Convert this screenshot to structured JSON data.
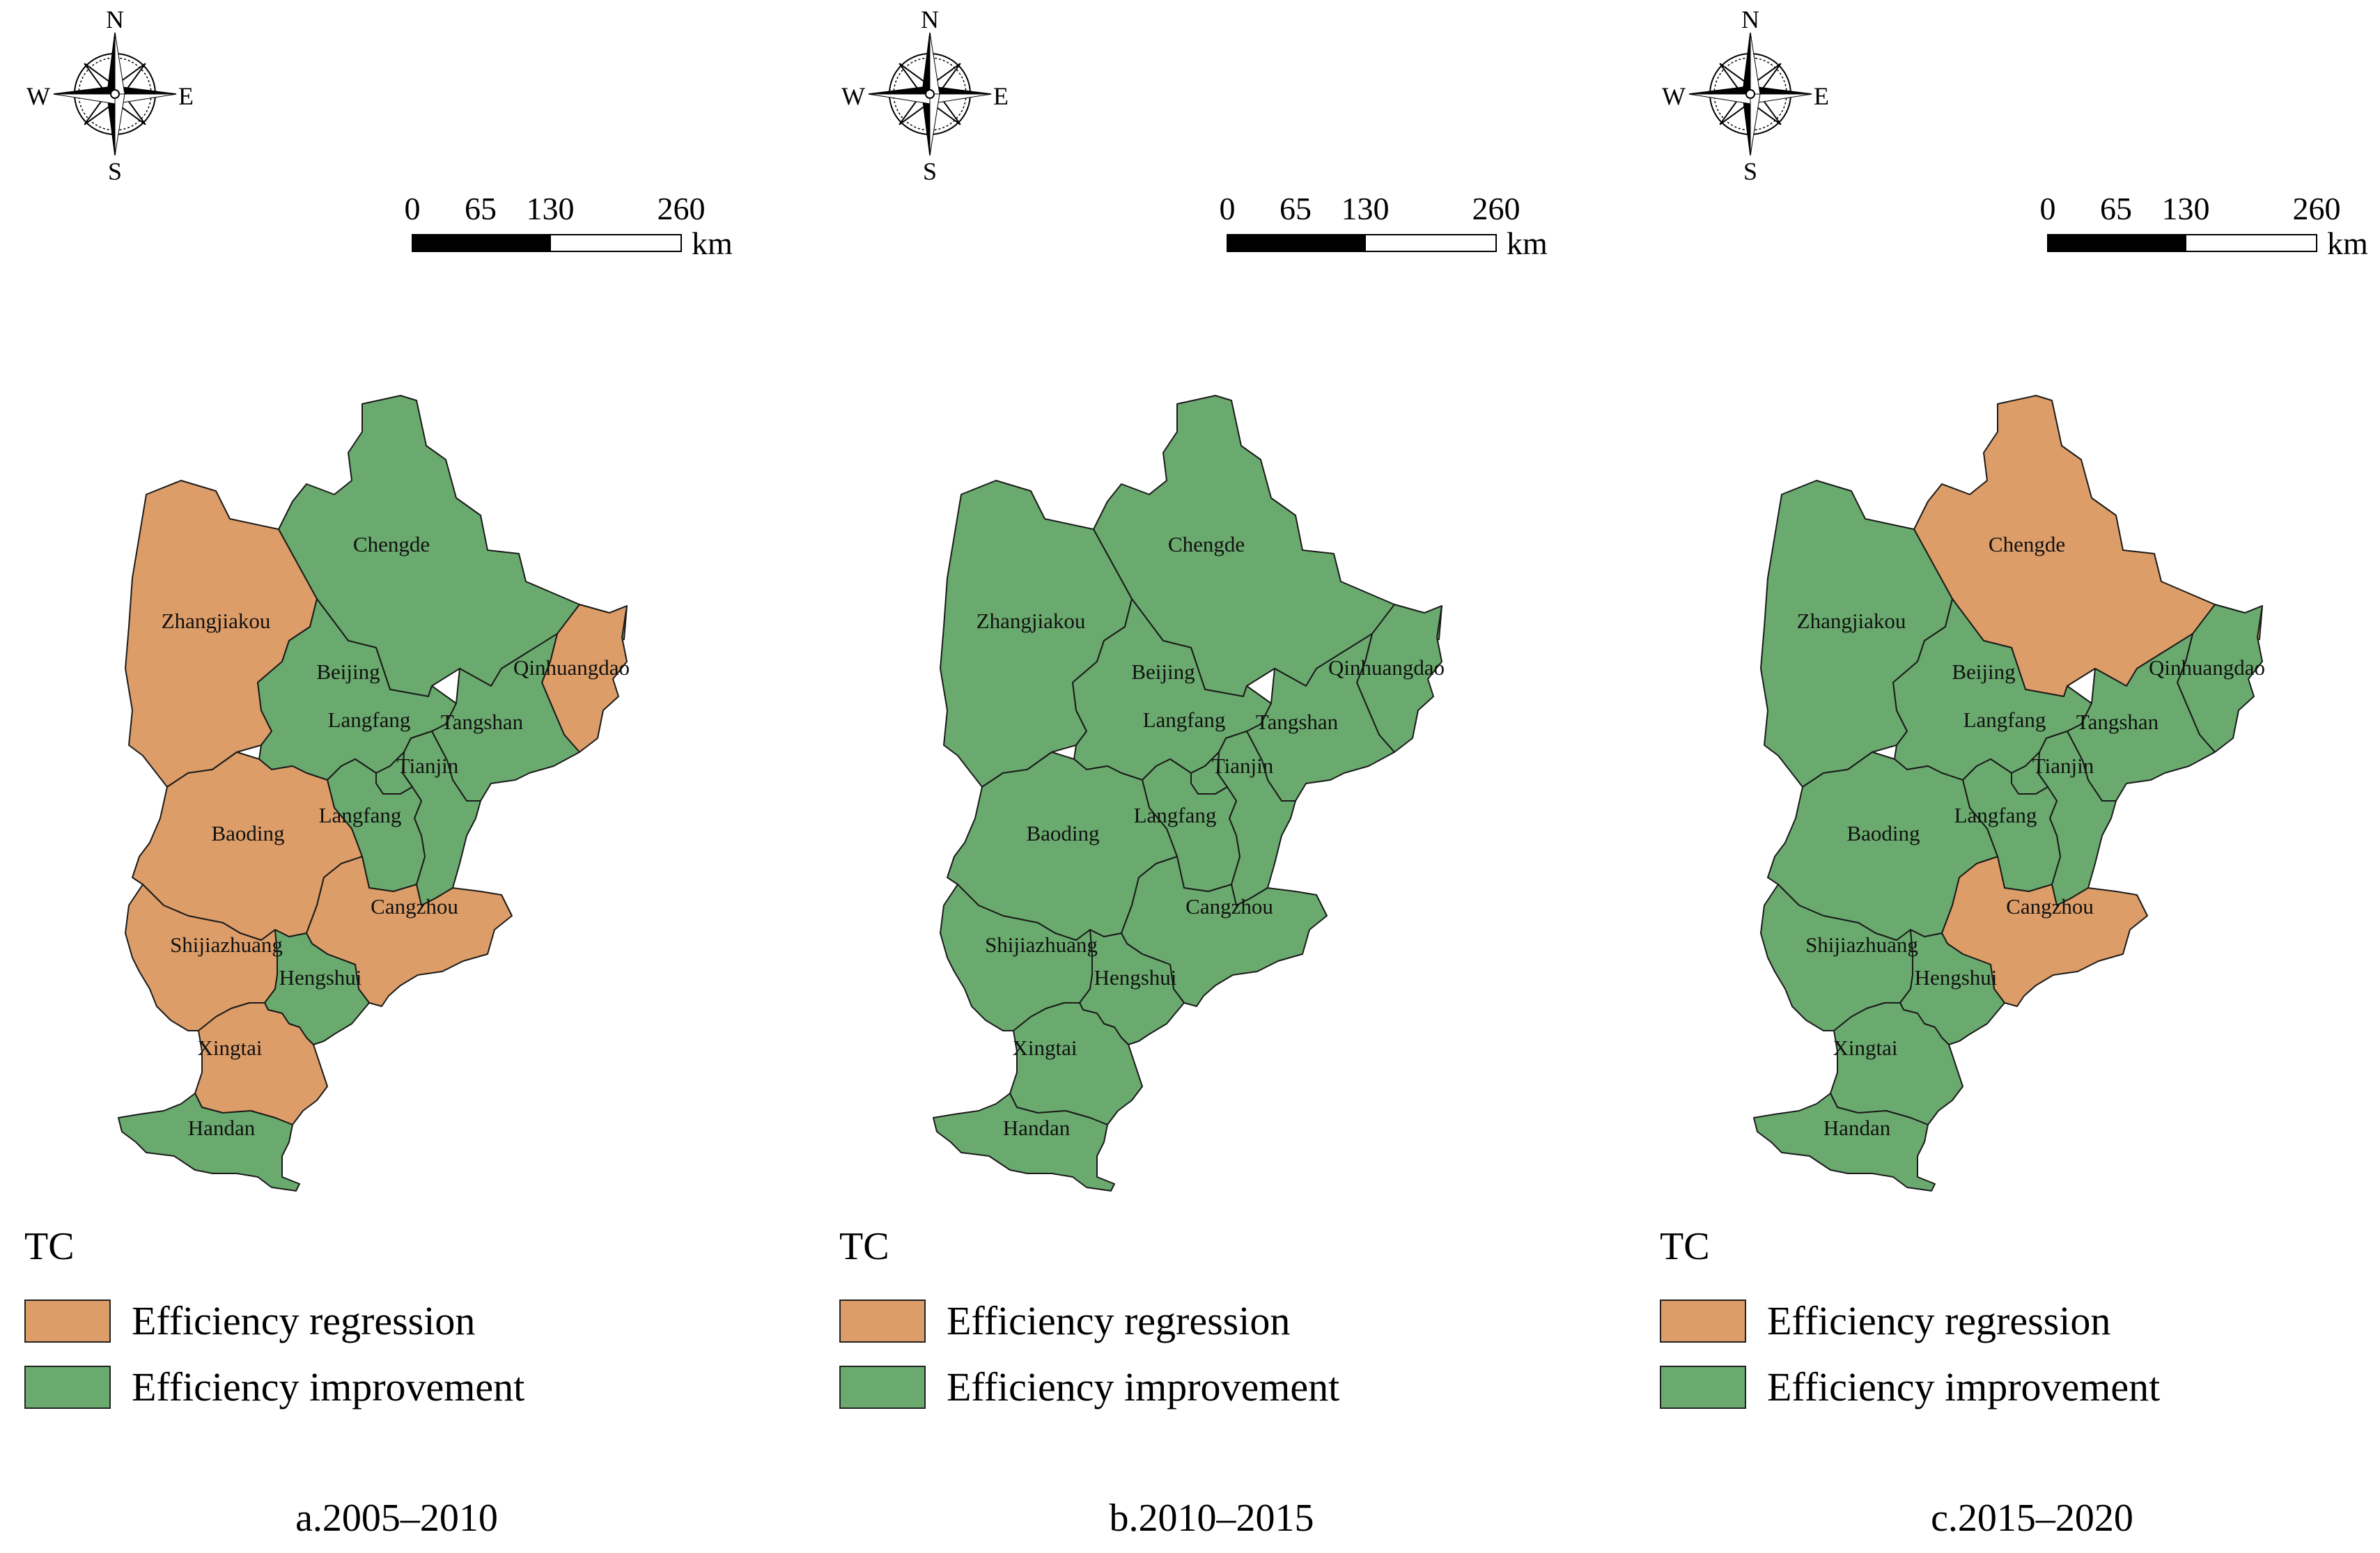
{
  "colors": {
    "regression": "#dd9d68",
    "improvement": "#6aaa6e",
    "border": "#1a1a1a"
  },
  "compass": {
    "n": "N",
    "s": "S",
    "e": "E",
    "w": "W"
  },
  "scale": {
    "ticks": [
      "0",
      "65",
      "130",
      "260"
    ],
    "unit": "km"
  },
  "legend": {
    "title": "TC",
    "items": [
      {
        "key": "regression",
        "label": "Efficiency regression"
      },
      {
        "key": "improvement",
        "label": "Efficiency improvement"
      }
    ]
  },
  "cities": [
    "Chengde",
    "Zhangjiakou",
    "Beijing",
    "Qinhuangdao",
    "Langfang",
    "Tangshan",
    "Tianjin",
    "Langfang",
    "Baoding",
    "Cangzhou",
    "Shijiazhuang",
    "Hengshui",
    "Xingtai",
    "Handan"
  ],
  "panels": [
    {
      "caption": "a.2005–2010",
      "status": {
        "Chengde": "improvement",
        "Zhangjiakou": "regression",
        "Beijing": "improvement",
        "Qinhuangdao": "regression",
        "Tangshan": "improvement",
        "Tianjin": "improvement",
        "Langfang": "improvement",
        "Baoding": "regression",
        "Cangzhou": "regression",
        "Shijiazhuang": "regression",
        "Hengshui": "improvement",
        "Xingtai": "regression",
        "Handan": "improvement"
      }
    },
    {
      "caption": "b.2010–2015",
      "status": {
        "Chengde": "improvement",
        "Zhangjiakou": "improvement",
        "Beijing": "improvement",
        "Qinhuangdao": "improvement",
        "Tangshan": "improvement",
        "Tianjin": "improvement",
        "Langfang": "improvement",
        "Baoding": "improvement",
        "Cangzhou": "improvement",
        "Shijiazhuang": "improvement",
        "Hengshui": "improvement",
        "Xingtai": "improvement",
        "Handan": "improvement"
      }
    },
    {
      "caption": "c.2015–2020",
      "status": {
        "Chengde": "regression",
        "Zhangjiakou": "improvement",
        "Beijing": "improvement",
        "Qinhuangdao": "improvement",
        "Tangshan": "improvement",
        "Tianjin": "improvement",
        "Langfang": "improvement",
        "Baoding": "improvement",
        "Cangzhou": "regression",
        "Shijiazhuang": "improvement",
        "Hengshui": "improvement",
        "Xingtai": "improvement",
        "Handan": "improvement"
      }
    }
  ]
}
